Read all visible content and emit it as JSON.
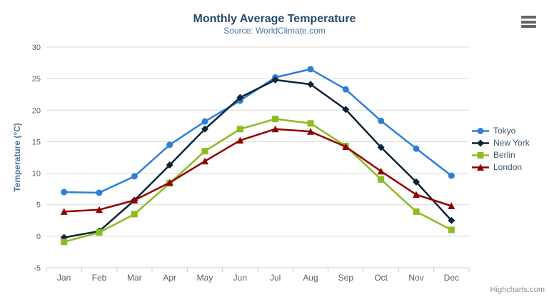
{
  "chart": {
    "credits_label": "Highcharts.com",
    "export_menu_icon": "hamburger-menu-icon"
  },
  "chart_data": {
    "type": "line",
    "title": "Monthly Average Temperature",
    "subtitle": "Source: WorldClimate.com",
    "xlabel": "",
    "ylabel": "Temperature (°C)",
    "categories": [
      "Jan",
      "Feb",
      "Mar",
      "Apr",
      "May",
      "Jun",
      "Jul",
      "Aug",
      "Sep",
      "Oct",
      "Nov",
      "Dec"
    ],
    "yticks": [
      -5,
      0,
      5,
      10,
      15,
      20,
      25,
      30
    ],
    "ylim": [
      -5,
      30
    ],
    "grid": "horizontal",
    "legend_position": "right-middle",
    "series": [
      {
        "name": "Tokyo",
        "color": "#2f7ed8",
        "marker": "circle",
        "values": [
          7.0,
          6.9,
          9.5,
          14.5,
          18.2,
          21.5,
          25.2,
          26.5,
          23.3,
          18.3,
          13.9,
          9.6
        ]
      },
      {
        "name": "New York",
        "color": "#0d233a",
        "marker": "diamond",
        "values": [
          -0.2,
          0.8,
          5.7,
          11.3,
          17.0,
          22.0,
          24.8,
          24.1,
          20.1,
          14.1,
          8.6,
          2.5
        ]
      },
      {
        "name": "Berlin",
        "color": "#8bbc21",
        "marker": "square",
        "values": [
          -0.9,
          0.6,
          3.5,
          8.4,
          13.5,
          17.0,
          18.6,
          17.9,
          14.3,
          9.0,
          3.9,
          1.0
        ]
      },
      {
        "name": "London",
        "color": "#910000",
        "marker": "triangle",
        "values": [
          3.9,
          4.2,
          5.7,
          8.5,
          11.9,
          15.2,
          17.0,
          16.6,
          14.2,
          10.3,
          6.6,
          4.8
        ]
      }
    ],
    "colors": {
      "title_text": "#274b6d",
      "subtitle_text": "#4d759e",
      "axis_title_text": "#4d759e",
      "tick_label_text": "#606060",
      "legend_text": "#3e576f",
      "gridline": "#d8d8d8",
      "x_axis_line": "#c0d0e0",
      "credits_text": "#8f8f8f",
      "menu_icon": "#666666"
    }
  }
}
